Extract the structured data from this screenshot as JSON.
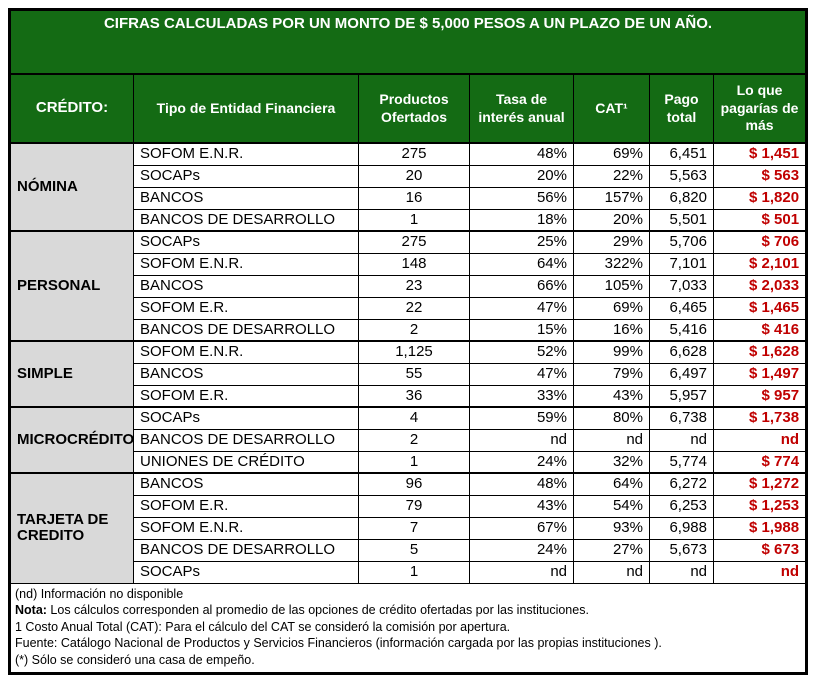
{
  "title": "CIFRAS CALCULADAS POR UN MONTO DE $ 5,000 PESOS A UN PLAZO DE UN AÑO.",
  "colors": {
    "green": "#146B14",
    "red": "#C00000",
    "gray": "#D9D9D9"
  },
  "columns": [
    "CRÉDITO:",
    "Tipo de Entidad Financiera",
    "Productos Ofertados",
    "Tasa de interés anual",
    "CAT¹",
    "Pago total",
    "Lo que pagarías de más"
  ],
  "groups": [
    {
      "name": "NÓMINA",
      "rows": [
        {
          "entity": "SOFOM E.N.R.",
          "productos": "275",
          "tasa": "48%",
          "cat": "69%",
          "pago": "6,451",
          "demas": "$ 1,451"
        },
        {
          "entity": "SOCAPs",
          "productos": "20",
          "tasa": "20%",
          "cat": "22%",
          "pago": "5,563",
          "demas": "$ 563"
        },
        {
          "entity": "BANCOS",
          "productos": "16",
          "tasa": "56%",
          "cat": "157%",
          "pago": "6,820",
          "demas": "$ 1,820"
        },
        {
          "entity": "BANCOS DE DESARROLLO",
          "productos": "1",
          "tasa": "18%",
          "cat": "20%",
          "pago": "5,501",
          "demas": "$ 501"
        }
      ]
    },
    {
      "name": "PERSONAL",
      "rows": [
        {
          "entity": "SOCAPs",
          "productos": "275",
          "tasa": "25%",
          "cat": "29%",
          "pago": "5,706",
          "demas": "$ 706"
        },
        {
          "entity": "SOFOM E.N.R.",
          "productos": "148",
          "tasa": "64%",
          "cat": "322%",
          "pago": "7,101",
          "demas": "$ 2,101"
        },
        {
          "entity": "BANCOS",
          "productos": "23",
          "tasa": "66%",
          "cat": "105%",
          "pago": "7,033",
          "demas": "$ 2,033"
        },
        {
          "entity": "SOFOM E.R.",
          "productos": "22",
          "tasa": "47%",
          "cat": "69%",
          "pago": "6,465",
          "demas": "$ 1,465"
        },
        {
          "entity": "BANCOS DE DESARROLLO",
          "productos": "2",
          "tasa": "15%",
          "cat": "16%",
          "pago": "5,416",
          "demas": "$ 416"
        }
      ]
    },
    {
      "name": "SIMPLE",
      "rows": [
        {
          "entity": "SOFOM E.N.R.",
          "productos": "1,125",
          "tasa": "52%",
          "cat": "99%",
          "pago": "6,628",
          "demas": "$ 1,628"
        },
        {
          "entity": "BANCOS",
          "productos": "55",
          "tasa": "47%",
          "cat": "79%",
          "pago": "6,497",
          "demas": "$ 1,497"
        },
        {
          "entity": "SOFOM E.R.",
          "productos": "36",
          "tasa": "33%",
          "cat": "43%",
          "pago": "5,957",
          "demas": "$ 957"
        }
      ]
    },
    {
      "name": "MICROCRÉDITO",
      "rows": [
        {
          "entity": "SOCAPs",
          "productos": "4",
          "tasa": "59%",
          "cat": "80%",
          "pago": "6,738",
          "demas": "$ 1,738"
        },
        {
          "entity": "BANCOS DE DESARROLLO",
          "productos": "2",
          "tasa": "nd",
          "cat": "nd",
          "pago": "nd",
          "demas": "nd"
        },
        {
          "entity": "UNIONES DE CRÉDITO",
          "productos": "1",
          "tasa": "24%",
          "cat": "32%",
          "pago": "5,774",
          "demas": "$ 774"
        }
      ]
    },
    {
      "name": "TARJETA DE CREDITO",
      "rows": [
        {
          "entity": "BANCOS",
          "productos": "96",
          "tasa": "48%",
          "cat": "64%",
          "pago": "6,272",
          "demas": "$ 1,272"
        },
        {
          "entity": "SOFOM E.R.",
          "productos": "79",
          "tasa": "43%",
          "cat": "54%",
          "pago": "6,253",
          "demas": "$ 1,253"
        },
        {
          "entity": "SOFOM E.N.R.",
          "productos": "7",
          "tasa": "67%",
          "cat": "93%",
          "pago": "6,988",
          "demas": "$ 1,988"
        },
        {
          "entity": "BANCOS DE DESARROLLO",
          "productos": "5",
          "tasa": "24%",
          "cat": "27%",
          "pago": "5,673",
          "demas": "$ 673"
        },
        {
          "entity": "SOCAPs",
          "productos": "1",
          "tasa": "nd",
          "cat": "nd",
          "pago": "nd",
          "demas": "nd"
        }
      ]
    }
  ],
  "notes": [
    {
      "bold": "",
      "text": "(nd) Información  no disponible"
    },
    {
      "bold": "Nota:",
      "text": " Los cálculos  corresponden  al promedio  de las opciones  de crédito  ofertadas  por las instituciones."
    },
    {
      "bold": "",
      "text": "1 Costo  Anual  Total (CAT): Para el cálculo  del CAT  se consideró  la comisión  por apertura."
    },
    {
      "bold": "",
      "text": "Fuente:  Catálogo  Nacional  de Productos  y Servicios  Financieros  (información  cargada  por las propias  instituciones )."
    },
    {
      "bold": "",
      "text": "(*) Sólo se consideró  una casa de empeño."
    }
  ]
}
